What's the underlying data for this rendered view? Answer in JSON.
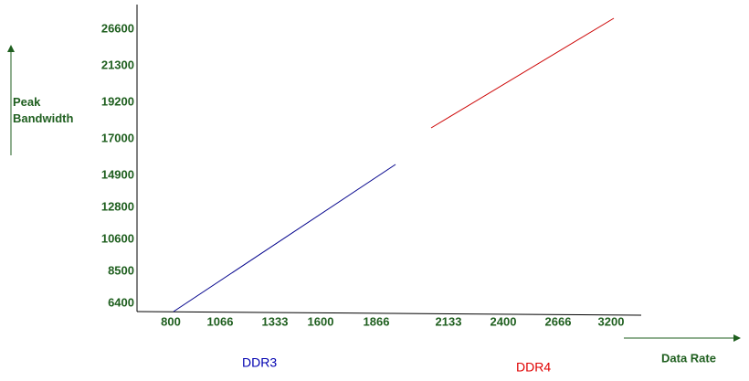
{
  "axis_titles": {
    "y": "Peak\nBandwidth",
    "x": "Data Rate"
  },
  "y_labels": [
    "26600",
    "21300",
    "19200",
    "17000",
    "14900",
    "12800",
    "10600",
    "8500",
    "6400"
  ],
  "x_labels": [
    "800",
    "1066",
    "1333",
    "1600",
    "1866",
    "2133",
    "2400",
    "2666",
    "3200"
  ],
  "series_labels": [
    "DDR3",
    "DDR4"
  ]
}
